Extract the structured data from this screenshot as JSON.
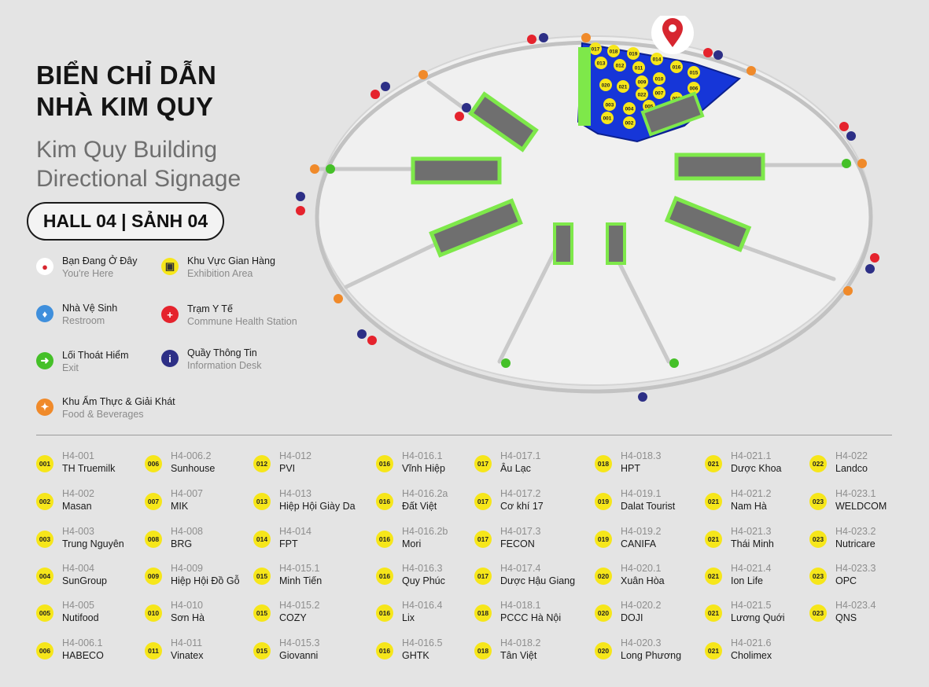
{
  "title": {
    "vi_line1": "BIỂN CHỈ DẪN",
    "vi_line2": "NHÀ KIM QUY",
    "en_line1": "Kim Quy Building",
    "en_line2": "Directional Signage"
  },
  "hall_label": "HALL 04 | SẢNH 04",
  "legend": [
    {
      "icon": "location-pin-icon",
      "color": "#d7262f",
      "vi": "Bạn Đang Ở Đây",
      "en": "You're Here"
    },
    {
      "icon": "exhibition-area-icon",
      "color": "#f6e61a",
      "vi": "Khu Vực Gian Hàng",
      "en": "Exhibition Area"
    },
    {
      "icon": "restroom-icon",
      "color": "#3f8fdc",
      "vi": "Nhà Vệ Sinh",
      "en": "Restroom"
    },
    {
      "icon": "health-cross-icon",
      "color": "#e5232d",
      "vi": "Trạm Y Tế",
      "en": "Commune Health Station"
    },
    {
      "icon": "exit-icon",
      "color": "#45c028",
      "vi": "Lối Thoát Hiểm",
      "en": "Exit"
    },
    {
      "icon": "info-icon",
      "color": "#2d2f86",
      "vi": "Quầy Thông Tin",
      "en": "Information Desk"
    },
    {
      "icon": "food-beverage-icon",
      "color": "#f08a2a",
      "vi": "Khu Ẩm Thực & Giải Khát",
      "en": "Food & Beverages"
    }
  ],
  "map": {
    "booth_badges": [
      "017",
      "018",
      "019",
      "013",
      "012",
      "011",
      "014",
      "016",
      "015",
      "010",
      "009",
      "020",
      "021",
      "022",
      "007",
      "008",
      "006",
      "003",
      "004",
      "005",
      "023",
      "001",
      "002"
    ]
  },
  "booths": [
    [
      {
        "badge": "001",
        "code": "H4-001",
        "name": "TH Truemilk"
      },
      {
        "badge": "002",
        "code": "H4-002",
        "name": "Masan"
      },
      {
        "badge": "003",
        "code": "H4-003",
        "name": "Trung Nguyên"
      },
      {
        "badge": "004",
        "code": "H4-004",
        "name": "SunGroup"
      },
      {
        "badge": "005",
        "code": "H4-005",
        "name": "Nutifood"
      },
      {
        "badge": "006",
        "code": "H4-006.1",
        "name": "HABECO"
      }
    ],
    [
      {
        "badge": "006",
        "code": "H4-006.2",
        "name": "Sunhouse"
      },
      {
        "badge": "007",
        "code": "H4-007",
        "name": "MIK"
      },
      {
        "badge": "008",
        "code": "H4-008",
        "name": "BRG"
      },
      {
        "badge": "009",
        "code": "H4-009",
        "name": "Hiệp Hội Đồ Gỗ"
      },
      {
        "badge": "010",
        "code": "H4-010",
        "name": "Sơn Hà"
      },
      {
        "badge": "011",
        "code": "H4-011",
        "name": "Vinatex"
      }
    ],
    [
      {
        "badge": "012",
        "code": "H4-012",
        "name": "PVI"
      },
      {
        "badge": "013",
        "code": "H4-013",
        "name": "Hiệp Hội Giày Da"
      },
      {
        "badge": "014",
        "code": "H4-014",
        "name": "FPT"
      },
      {
        "badge": "015",
        "code": "H4-015.1",
        "name": "Minh Tiến"
      },
      {
        "badge": "015",
        "code": "H4-015.2",
        "name": "COZY"
      },
      {
        "badge": "015",
        "code": "H4-015.3",
        "name": "Giovanni"
      }
    ],
    [
      {
        "badge": "016",
        "code": "H4-016.1",
        "name": "Vĩnh Hiệp"
      },
      {
        "badge": "016",
        "code": "H4-016.2a",
        "name": "Đất Việt"
      },
      {
        "badge": "016",
        "code": "H4-016.2b",
        "name": "Mori"
      },
      {
        "badge": "016",
        "code": "H4-016.3",
        "name": "Quy Phúc"
      },
      {
        "badge": "016",
        "code": "H4-016.4",
        "name": "Lix"
      },
      {
        "badge": "016",
        "code": "H4-016.5",
        "name": "GHTK"
      }
    ],
    [
      {
        "badge": "017",
        "code": "H4-017.1",
        "name": "Âu Lạc"
      },
      {
        "badge": "017",
        "code": "H4-017.2",
        "name": "Cơ khí 17"
      },
      {
        "badge": "017",
        "code": "H4-017.3",
        "name": "FECON"
      },
      {
        "badge": "017",
        "code": "H4-017.4",
        "name": "Dược Hậu Giang"
      },
      {
        "badge": "018",
        "code": "H4-018.1",
        "name": "PCCC Hà Nội"
      },
      {
        "badge": "018",
        "code": "H4-018.2",
        "name": "Tân Việt"
      }
    ],
    [
      {
        "badge": "018",
        "code": "H4-018.3",
        "name": "HPT"
      },
      {
        "badge": "019",
        "code": "H4-019.1",
        "name": "Dalat Tourist"
      },
      {
        "badge": "019",
        "code": "H4-019.2",
        "name": "CANIFA"
      },
      {
        "badge": "020",
        "code": "H4-020.1",
        "name": "Xuân Hòa"
      },
      {
        "badge": "020",
        "code": "H4-020.2",
        "name": "DOJI"
      },
      {
        "badge": "020",
        "code": "H4-020.3",
        "name": "Long Phương"
      }
    ],
    [
      {
        "badge": "021",
        "code": "H4-021.1",
        "name": "Dược Khoa"
      },
      {
        "badge": "021",
        "code": "H4-021.2",
        "name": "Nam Hà"
      },
      {
        "badge": "021",
        "code": "H4-021.3",
        "name": "Thái Minh"
      },
      {
        "badge": "021",
        "code": "H4-021.4",
        "name": "Ion Life"
      },
      {
        "badge": "021",
        "code": "H4-021.5",
        "name": "Lương Quới"
      },
      {
        "badge": "021",
        "code": "H4-021.6",
        "name": "Cholimex"
      }
    ],
    [
      {
        "badge": "022",
        "code": "H4-022",
        "name": "Landco"
      },
      {
        "badge": "023",
        "code": "H4-023.1",
        "name": "WELDCOM"
      },
      {
        "badge": "023",
        "code": "H4-023.2",
        "name": "Nutricare"
      },
      {
        "badge": "023",
        "code": "H4-023.3",
        "name": "OPC"
      },
      {
        "badge": "023",
        "code": "H4-023.4",
        "name": "QNS"
      }
    ]
  ]
}
